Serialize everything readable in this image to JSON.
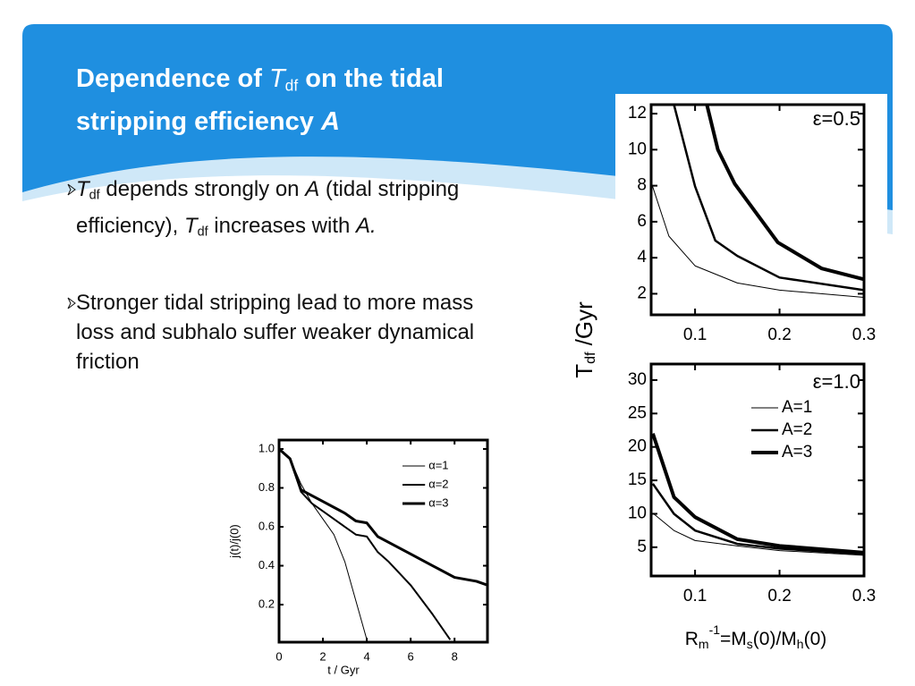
{
  "title": [
    "Dependence of ",
    "T",
    "df",
    " on the tidal",
    "stripping efficiency ",
    "A"
  ],
  "bullets": [
    [
      "T",
      "df",
      " depends strongly on ",
      "A",
      " (tidal stripping efficiency), ",
      "T",
      "df",
      " increases with ",
      "A."
    ],
    [
      "Stronger tidal stripping lead to more mass loss and subhalo suffer weaker dynamical friction"
    ]
  ],
  "chart_data": [
    {
      "type": "line",
      "annotation": "ε=0.5",
      "ylabel": [
        "T",
        "df",
        " /Gyr"
      ],
      "xlim": [
        0.048,
        0.3
      ],
      "xticks": [
        0.1,
        0.2,
        0.3
      ],
      "ylim": [
        0.83,
        12.5
      ],
      "yticks": [
        2,
        4,
        6,
        8,
        10,
        12
      ],
      "series": [
        {
          "color": "#000000",
          "linewidth": 1,
          "x": [
            0.049,
            0.069,
            0.1,
            0.15,
            0.2,
            0.3
          ],
          "values": [
            8.06,
            5.2,
            3.55,
            2.6,
            2.2,
            1.8
          ]
        },
        {
          "color": "#000000",
          "linewidth": 2.5,
          "x": [
            0.075,
            0.1,
            0.124,
            0.15,
            0.2,
            0.3
          ],
          "values": [
            12.5,
            7.96,
            4.95,
            4.1,
            2.9,
            2.2
          ]
        },
        {
          "color": "#000000",
          "linewidth": 4,
          "x": [
            0.114,
            0.127,
            0.147,
            0.198,
            0.25,
            0.3
          ],
          "values": [
            12.5,
            10.0,
            8.1,
            4.85,
            3.4,
            2.8
          ]
        }
      ]
    },
    {
      "type": "line",
      "annotation": "ε=1.0",
      "xlabel": [
        "R",
        "m",
        "-1",
        "=M",
        "s",
        "(0)/M",
        "h",
        "(0)"
      ],
      "xlim": [
        0.048,
        0.3
      ],
      "xticks": [
        0.1,
        0.2,
        0.3
      ],
      "ylim": [
        0.7,
        32.4
      ],
      "yticks": [
        5,
        10,
        15,
        20,
        25,
        30
      ],
      "series": [
        {
          "name": "A=1",
          "color": "#000000",
          "linewidth": 1,
          "x": [
            0.05,
            0.075,
            0.1,
            0.15,
            0.2,
            0.3
          ],
          "values": [
            10.1,
            7.5,
            6,
            5.2,
            4.5,
            3.8
          ]
        },
        {
          "name": "A=2",
          "color": "#000000",
          "linewidth": 2.5,
          "x": [
            0.05,
            0.075,
            0.1,
            0.15,
            0.2,
            0.3
          ],
          "values": [
            14.5,
            10,
            7.5,
            5.5,
            4.8,
            4
          ]
        },
        {
          "name": "A=3",
          "color": "#000000",
          "linewidth": 4,
          "x": [
            0.05,
            0.075,
            0.1,
            0.15,
            0.2,
            0.3
          ],
          "values": [
            22,
            12.5,
            9.5,
            6.2,
            5.2,
            4.2
          ]
        }
      ]
    },
    {
      "type": "line",
      "xlabel": "t / Gyr",
      "ylabel": "j(t)/j(0)",
      "xlim": [
        0,
        9.5
      ],
      "xticks": [
        0,
        2,
        4,
        6,
        8
      ],
      "ylim": [
        0.007,
        1.046
      ],
      "yticks": [
        0.2,
        0.4,
        0.6,
        0.8,
        {
          "value": 1.0,
          "label": "1.0"
        }
      ],
      "series": [
        {
          "name": "α=1",
          "color": "#000000",
          "linewidth": 1,
          "x": [
            0,
            0.5,
            1,
            1.5,
            2,
            2.5,
            3,
            3.5,
            4
          ],
          "values": [
            1,
            0.95,
            0.82,
            0.72,
            0.64,
            0.56,
            0.42,
            0.22,
            0.02
          ]
        },
        {
          "name": "α=2",
          "color": "#000000",
          "linewidth": 2,
          "x": [
            0,
            0.5,
            1,
            1.5,
            2,
            3,
            3.5,
            4,
            4.5,
            5,
            6,
            7,
            7.8
          ],
          "values": [
            1,
            0.95,
            0.78,
            0.72,
            0.68,
            0.6,
            0.56,
            0.55,
            0.47,
            0.42,
            0.3,
            0.15,
            0.02
          ]
        },
        {
          "name": "α=3",
          "color": "#000000",
          "linewidth": 3,
          "x": [
            0,
            0.5,
            1,
            2,
            3,
            3.5,
            4,
            4.5,
            5,
            6,
            7,
            8,
            9,
            9.5
          ],
          "values": [
            1,
            0.95,
            0.79,
            0.73,
            0.67,
            0.63,
            0.62,
            0.55,
            0.52,
            0.46,
            0.4,
            0.34,
            0.32,
            0.3
          ]
        }
      ]
    }
  ]
}
